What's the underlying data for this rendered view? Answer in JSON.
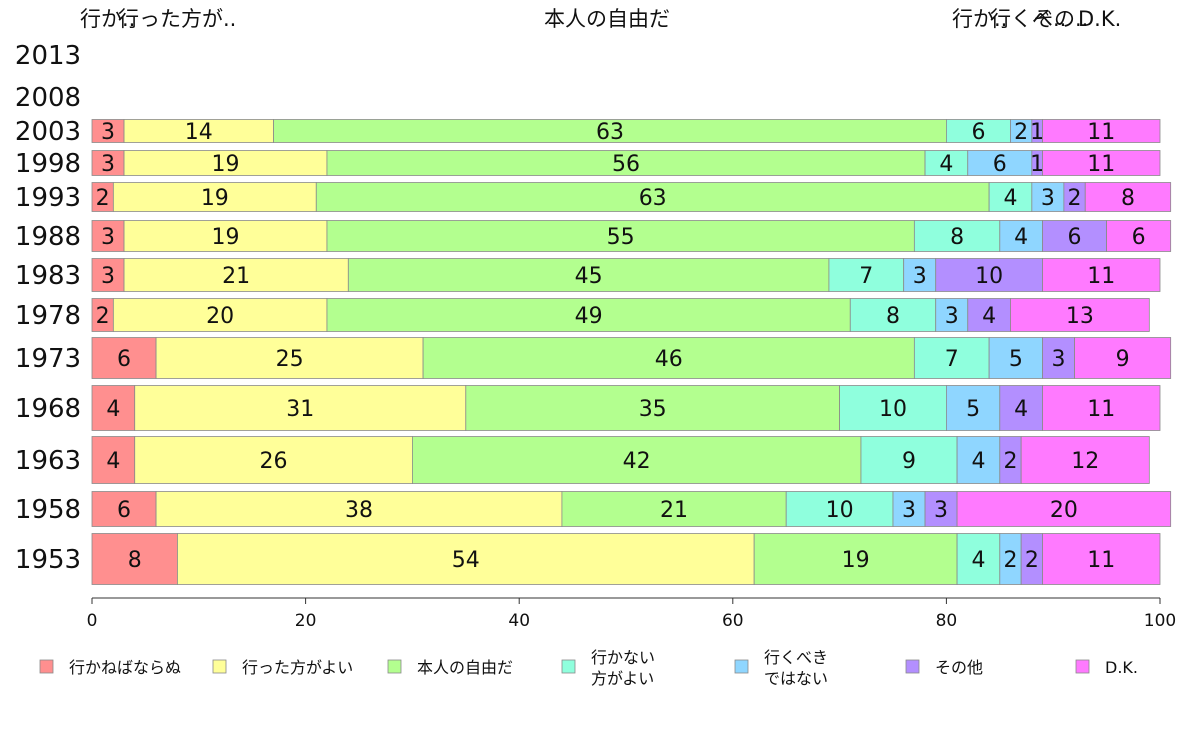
{
  "chart_data": {
    "type": "bar",
    "orientation": "horizontal",
    "stacked": true,
    "xlim": [
      0,
      100
    ],
    "x_ticks": [
      "0",
      "20",
      "40",
      "60",
      "80",
      "100"
    ],
    "top_labels": [
      "行か..",
      "行った方が..",
      "本人の自由だ",
      "行か..",
      "行くべ..",
      "その..",
      "D.K."
    ],
    "categories": [
      "2013",
      "2008",
      "2003",
      "1998",
      "1993",
      "1988",
      "1983",
      "1978",
      "1973",
      "1968",
      "1963",
      "1958",
      "1953"
    ],
    "series": [
      {
        "name": "行かねばならぬ",
        "color": "#ff8f8f",
        "values": [
          null,
          null,
          3,
          3,
          2,
          3,
          3,
          2,
          6,
          4,
          4,
          6,
          8
        ]
      },
      {
        "name": "行った方がよい",
        "color": "#ffff99",
        "values": [
          null,
          null,
          14,
          19,
          19,
          19,
          21,
          20,
          25,
          31,
          26,
          38,
          54
        ]
      },
      {
        "name": "本人の自由だ",
        "color": "#b3ff8f",
        "values": [
          null,
          null,
          63,
          56,
          63,
          55,
          45,
          49,
          46,
          35,
          42,
          21,
          19
        ]
      },
      {
        "name": "行かない\n方がよい",
        "color": "#8fffdd",
        "values": [
          null,
          null,
          6,
          4,
          4,
          8,
          7,
          8,
          7,
          10,
          9,
          10,
          4
        ]
      },
      {
        "name": "行くべき\nではない",
        "color": "#8fd6ff",
        "values": [
          null,
          null,
          2,
          6,
          3,
          4,
          3,
          3,
          5,
          5,
          4,
          3,
          2
        ]
      },
      {
        "name": "その他",
        "color": "#b38fff",
        "values": [
          null,
          null,
          1,
          1,
          2,
          6,
          10,
          4,
          3,
          4,
          2,
          3,
          2
        ]
      },
      {
        "name": "D.K.",
        "color": "#ff7aff",
        "values": [
          null,
          null,
          11,
          11,
          8,
          6,
          11,
          13,
          9,
          11,
          12,
          20,
          11
        ]
      }
    ]
  }
}
